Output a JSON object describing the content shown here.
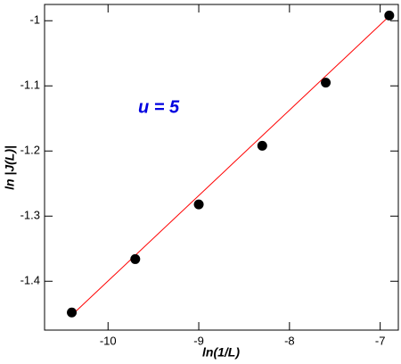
{
  "chart_data": {
    "type": "scatter",
    "xlabel": "ln(1/L)",
    "ylabel": "ln |J(L)|",
    "annotation": "u = 5",
    "xlim": [
      -10.7,
      -6.8
    ],
    "ylim": [
      -1.475,
      -0.975
    ],
    "xticks": [
      -10,
      -9,
      -8,
      -7
    ],
    "yticks": [
      -1.4,
      -1.3,
      -1.2,
      -1.1,
      -1
    ],
    "x": [
      -10.4,
      -9.7,
      -9.0,
      -8.3,
      -7.6,
      -6.9
    ],
    "values": [
      -1.448,
      -1.366,
      -1.282,
      -1.192,
      -1.095,
      -0.992
    ],
    "color": "#000000",
    "fit": {
      "x": [
        -10.4,
        -6.9
      ],
      "values": [
        -1.452,
        -0.993
      ],
      "color": "#ff0000"
    }
  }
}
